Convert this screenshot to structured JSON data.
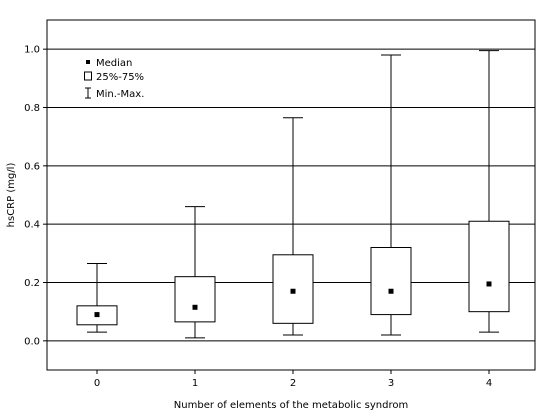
{
  "chart_data": {
    "type": "boxplot",
    "xlabel": "Number of elements of the metabolic syndrom",
    "ylabel": "hsCRP (mg/l)",
    "ylim": [
      -0.1,
      1.1
    ],
    "yticks": [
      "0.0",
      "0.2",
      "0.4",
      "0.6",
      "0.8",
      "1.0"
    ],
    "grid": "horizontal",
    "legend_placement": "top-left",
    "categories": [
      "0",
      "1",
      "2",
      "3",
      "4"
    ],
    "boxes": [
      {
        "category": "0",
        "min": 0.03,
        "q1": 0.055,
        "median": 0.09,
        "q3": 0.12,
        "max": 0.265
      },
      {
        "category": "1",
        "min": 0.01,
        "q1": 0.065,
        "median": 0.115,
        "q3": 0.22,
        "max": 0.46
      },
      {
        "category": "2",
        "min": 0.02,
        "q1": 0.06,
        "median": 0.17,
        "q3": 0.295,
        "max": 0.765
      },
      {
        "category": "3",
        "min": 0.02,
        "q1": 0.09,
        "median": 0.17,
        "q3": 0.32,
        "max": 0.98
      },
      {
        "category": "4",
        "min": 0.03,
        "q1": 0.1,
        "median": 0.195,
        "q3": 0.41,
        "max": 0.995
      }
    ],
    "legend": [
      {
        "symbol": "point",
        "label": "Median"
      },
      {
        "symbol": "box",
        "label": "25%-75%"
      },
      {
        "symbol": "whisker",
        "label": "Min.-Max."
      }
    ]
  }
}
